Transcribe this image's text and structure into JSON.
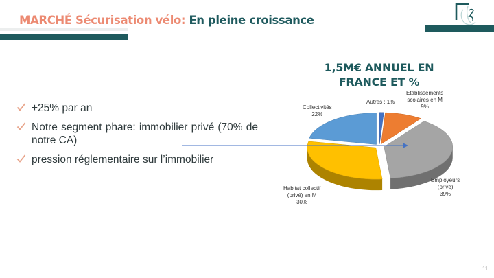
{
  "slide": {
    "title_part1": "MARCHÉ Sécurisation vélo: ",
    "title_part2": "En pleine croissance",
    "bullets": [
      "+25% par an",
      "Notre segment phare: immobilier privé (70% de notre CA)",
      "pression réglementaire sur l’immobilier"
    ],
    "page_number": "11"
  },
  "chart_data": {
    "type": "pie",
    "title": "1,5M€ ANNUEL EN FRANCE ET %",
    "slices": [
      {
        "label": "Autres",
        "value_label": "Autres : 1%",
        "value": 1,
        "color": "#4472c4"
      },
      {
        "label": "Etablissements scolaires en M",
        "value_label": "9%",
        "value": 9,
        "color": "#ed7d31"
      },
      {
        "label": "Employeurs (privé)",
        "value_label": "39%",
        "value": 39,
        "color": "#a5a5a5"
      },
      {
        "label": "Habitat collectif (privé) en M",
        "value_label": "30%",
        "value": 30,
        "color": "#ffc000"
      },
      {
        "label": "Collectivités",
        "value_label": "22%",
        "value": 22,
        "color": "#5b9bd5"
      }
    ]
  },
  "labels": {
    "autres": "Autres : 1%",
    "etab_l1": "Etablissements",
    "etab_l2": "scolaires en M",
    "etab_pct": "9%",
    "employeurs_l1": "Employeurs",
    "employeurs_l2": "(privé)",
    "employeurs_pct": "39%",
    "habitat_l1": "Habitat collectif",
    "habitat_l2": "(privé) en M",
    "habitat_pct": "30%",
    "collectivites_l1": "Collectivités",
    "collectivites_pct": "22%"
  },
  "colors": {
    "teal": "#1e5a5d",
    "salmon": "#ec8a72",
    "check": "#e8a48a"
  }
}
